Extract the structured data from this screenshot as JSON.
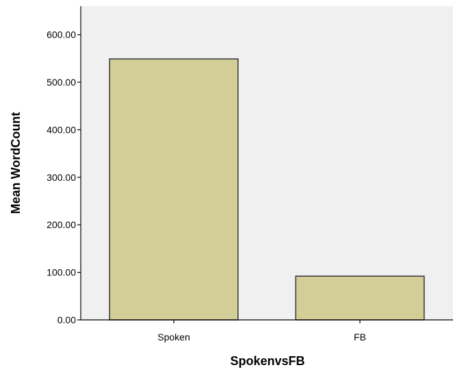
{
  "chart_data": {
    "type": "bar",
    "categories": [
      "Spoken",
      "FB"
    ],
    "values": [
      549,
      92
    ],
    "xlabel": "SpokenvsFB",
    "ylabel": "Mean WordCount",
    "ylim": [
      0,
      660
    ],
    "yticks": [
      0,
      100,
      200,
      300,
      400,
      500,
      600
    ],
    "ytick_labels": [
      "0.00",
      "100.00",
      "200.00",
      "300.00",
      "400.00",
      "500.00",
      "600.00"
    ],
    "grid": false,
    "plot_background": "#f0f0f0",
    "bar_color": "#d3ce97",
    "bar_edge_color": "#333333"
  }
}
